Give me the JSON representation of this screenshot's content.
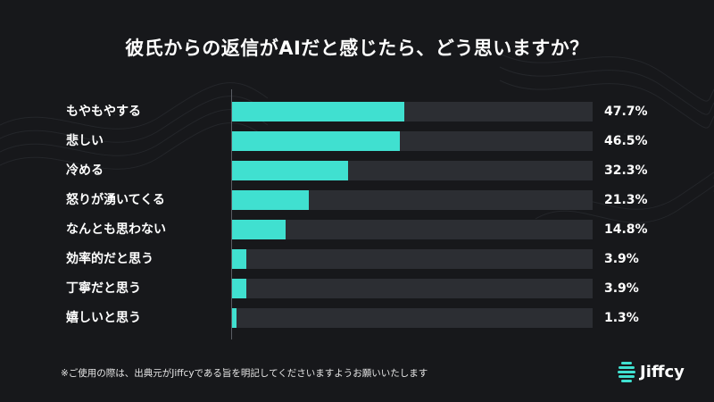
{
  "title": "彼氏からの返信がAIだと感じたら、どう思いますか？",
  "colors": {
    "background": "#17181b",
    "bar": "#40e0d0",
    "track": "#2c2e33",
    "text": "#ffffff"
  },
  "chart_data": {
    "type": "bar",
    "orientation": "horizontal",
    "categories": [
      "もやもやする",
      "悲しい",
      "冷める",
      "怒りが湧いてくる",
      "なんとも思わない",
      "効率的だと思う",
      "丁寧だと思う",
      "嬉しいと思う"
    ],
    "values": [
      47.7,
      46.5,
      32.3,
      21.3,
      14.8,
      3.9,
      3.9,
      1.3
    ],
    "value_labels": [
      "47.7%",
      "46.5%",
      "32.3%",
      "21.3%",
      "14.8%",
      "3.9%",
      "3.9%",
      "1.3%"
    ],
    "xlim": [
      0,
      100
    ],
    "unit": "%",
    "grid": false,
    "legend": "none"
  },
  "footnote": "※ご使用の際は、出典元がJiffcyである旨を明記してくださいますようお願いいたします",
  "brand": {
    "name": "Jiffcy",
    "logo_icon": "jiffcy-logo-icon"
  }
}
